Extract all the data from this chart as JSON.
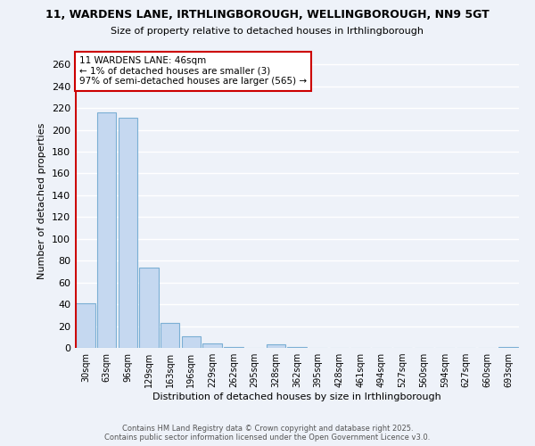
{
  "title_line1": "11, WARDENS LANE, IRTHLINGBOROUGH, WELLINGBOROUGH, NN9 5GT",
  "title_line2": "Size of property relative to detached houses in Irthlingborough",
  "xlabel": "Distribution of detached houses by size in Irthlingborough",
  "ylabel": "Number of detached properties",
  "categories": [
    "30sqm",
    "63sqm",
    "96sqm",
    "129sqm",
    "163sqm",
    "196sqm",
    "229sqm",
    "262sqm",
    "295sqm",
    "328sqm",
    "362sqm",
    "395sqm",
    "428sqm",
    "461sqm",
    "494sqm",
    "527sqm",
    "560sqm",
    "594sqm",
    "627sqm",
    "660sqm",
    "693sqm"
  ],
  "values": [
    41,
    216,
    211,
    74,
    23,
    11,
    4,
    1,
    0,
    3,
    1,
    0,
    0,
    0,
    0,
    0,
    0,
    0,
    0,
    0,
    1
  ],
  "bar_color": "#c5d8f0",
  "bar_edge_color": "#7bafd4",
  "ylim": [
    0,
    270
  ],
  "yticks": [
    0,
    20,
    40,
    60,
    80,
    100,
    120,
    140,
    160,
    180,
    200,
    220,
    240,
    260
  ],
  "annotation_text": "11 WARDENS LANE: 46sqm\n← 1% of detached houses are smaller (3)\n97% of semi-detached houses are larger (565) →",
  "annotation_box_color": "#ffffff",
  "annotation_box_edge": "#cc0000",
  "vline_color": "#cc0000",
  "background_color": "#eef2f9",
  "grid_color": "#ffffff",
  "footer_line1": "Contains HM Land Registry data © Crown copyright and database right 2025.",
  "footer_line2": "Contains public sector information licensed under the Open Government Licence v3.0."
}
